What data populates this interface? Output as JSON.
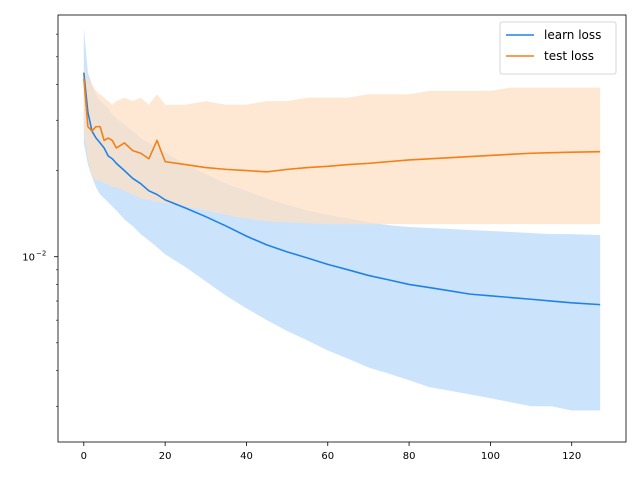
{
  "chart_data": {
    "type": "line",
    "title": "",
    "xlabel": "",
    "ylabel": "",
    "xlim": [
      -6.35,
      133.35
    ],
    "ylim": [
      0.00225,
      0.07
    ],
    "yscale": "log",
    "grid": false,
    "legend_position": "top-right",
    "x_ticks": [
      0,
      20,
      40,
      60,
      80,
      100,
      120
    ],
    "x_tick_labels": [
      "0",
      "20",
      "40",
      "60",
      "80",
      "100",
      "120"
    ],
    "y_major_ticks": [
      0.01
    ],
    "y_major_tick_labels": [
      "10"
    ],
    "y_major_tick_exponents": [
      "−2"
    ],
    "y_minor_ticks": [
      0.003,
      0.004,
      0.005,
      0.006,
      0.007,
      0.008,
      0.009,
      0.02,
      0.03,
      0.04,
      0.05,
      0.06
    ],
    "series": [
      {
        "name": "learn loss",
        "color": "#1f83e6",
        "band_color": "#cce4fb",
        "x": [
          0,
          1,
          2,
          3,
          4,
          5,
          6,
          7,
          8,
          10,
          12,
          14,
          16,
          18,
          20,
          25,
          30,
          35,
          40,
          45,
          50,
          55,
          60,
          65,
          70,
          75,
          80,
          85,
          90,
          95,
          100,
          105,
          110,
          115,
          120,
          127
        ],
        "y": [
          0.044,
          0.032,
          0.0275,
          0.026,
          0.025,
          0.024,
          0.0225,
          0.022,
          0.0212,
          0.02,
          0.0188,
          0.018,
          0.017,
          0.0165,
          0.0158,
          0.0148,
          0.0138,
          0.0128,
          0.0118,
          0.011,
          0.0104,
          0.0099,
          0.0094,
          0.009,
          0.0086,
          0.0083,
          0.008,
          0.0078,
          0.0076,
          0.0074,
          0.0073,
          0.0072,
          0.0071,
          0.007,
          0.0069,
          0.0068
        ],
        "band_upper": [
          0.063,
          0.044,
          0.04,
          0.037,
          0.035,
          0.034,
          0.033,
          0.0315,
          0.0305,
          0.029,
          0.0275,
          0.026,
          0.025,
          0.024,
          0.0232,
          0.021,
          0.0195,
          0.018,
          0.017,
          0.016,
          0.0152,
          0.0145,
          0.014,
          0.0136,
          0.0132,
          0.0129,
          0.0127,
          0.0126,
          0.0125,
          0.0124,
          0.0123,
          0.0122,
          0.0121,
          0.012,
          0.012,
          0.0119
        ],
        "band_lower": [
          0.025,
          0.021,
          0.019,
          0.0175,
          0.0165,
          0.016,
          0.0155,
          0.015,
          0.0145,
          0.0135,
          0.0128,
          0.012,
          0.0114,
          0.0108,
          0.0102,
          0.0092,
          0.0082,
          0.0073,
          0.0066,
          0.006,
          0.0055,
          0.0051,
          0.0047,
          0.0044,
          0.0041,
          0.0039,
          0.0037,
          0.0035,
          0.0034,
          0.0033,
          0.0032,
          0.0031,
          0.003,
          0.003,
          0.0029,
          0.0029
        ]
      },
      {
        "name": "test loss",
        "color": "#f47f14",
        "band_color": "#fde0c6",
        "x": [
          0,
          1,
          2,
          3,
          4,
          5,
          6,
          7,
          8,
          10,
          12,
          14,
          16,
          18,
          20,
          25,
          30,
          35,
          40,
          45,
          50,
          55,
          60,
          65,
          70,
          75,
          80,
          85,
          90,
          95,
          100,
          105,
          110,
          115,
          120,
          127
        ],
        "y": [
          0.042,
          0.0285,
          0.0275,
          0.0285,
          0.0285,
          0.0255,
          0.026,
          0.0255,
          0.024,
          0.025,
          0.0235,
          0.023,
          0.022,
          0.0255,
          0.0215,
          0.021,
          0.0205,
          0.0202,
          0.02,
          0.0198,
          0.0202,
          0.0205,
          0.0207,
          0.021,
          0.0212,
          0.0215,
          0.0218,
          0.022,
          0.0222,
          0.0224,
          0.0226,
          0.0228,
          0.023,
          0.0231,
          0.0232,
          0.0233
        ],
        "band_upper": [
          0.046,
          0.042,
          0.04,
          0.038,
          0.037,
          0.036,
          0.035,
          0.034,
          0.035,
          0.036,
          0.035,
          0.036,
          0.034,
          0.037,
          0.034,
          0.034,
          0.035,
          0.034,
          0.034,
          0.035,
          0.035,
          0.036,
          0.036,
          0.036,
          0.037,
          0.037,
          0.037,
          0.038,
          0.038,
          0.038,
          0.038,
          0.039,
          0.039,
          0.039,
          0.039,
          0.039
        ],
        "band_lower": [
          0.028,
          0.022,
          0.019,
          0.0185,
          0.0185,
          0.018,
          0.018,
          0.0175,
          0.0175,
          0.017,
          0.0165,
          0.016,
          0.0158,
          0.0156,
          0.0154,
          0.015,
          0.0145,
          0.014,
          0.0136,
          0.0133,
          0.0132,
          0.0131,
          0.013,
          0.013,
          0.013,
          0.013,
          0.013,
          0.013,
          0.013,
          0.013,
          0.013,
          0.013,
          0.013,
          0.013,
          0.013,
          0.013
        ]
      }
    ]
  }
}
